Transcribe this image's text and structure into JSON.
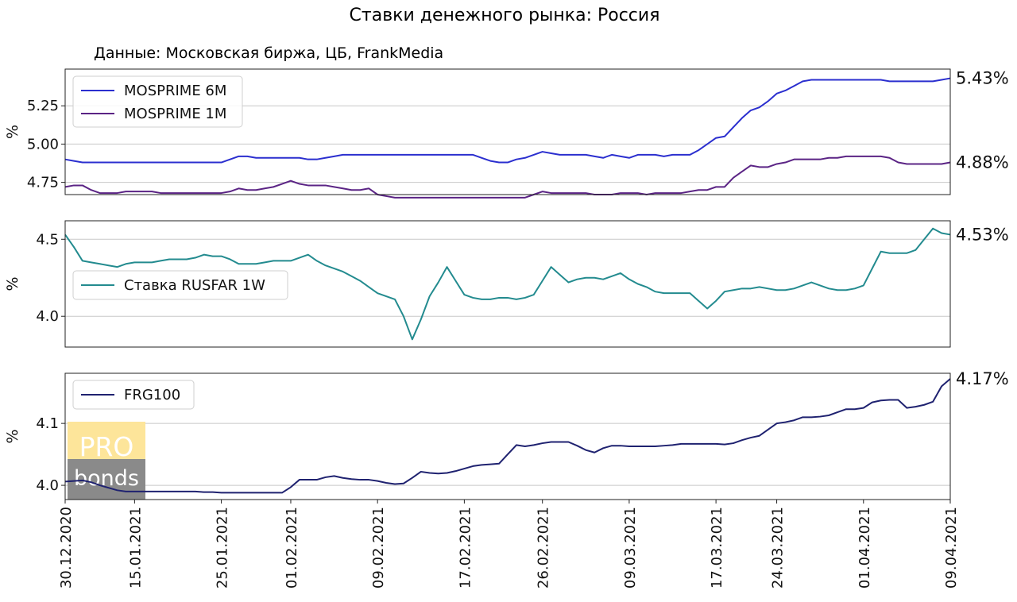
{
  "chart_data": {
    "type": "line",
    "title": "Ставки денежного рынка: Россия",
    "subtitle": "Данные: Московская биржа, ЦБ, FrankMedia",
    "x_tick_labels": [
      "30.12.2020",
      "15.01.2021",
      "25.01.2021",
      "01.02.2021",
      "09.02.2021",
      "17.02.2021",
      "26.02.2021",
      "09.03.2021",
      "17.03.2021",
      "24.03.2021",
      "01.04.2021",
      "09.04.2021"
    ],
    "x_tick_positions": [
      0,
      8,
      18,
      26,
      36,
      46,
      55,
      65,
      75,
      82,
      92,
      102
    ],
    "x_count": 103,
    "panels": [
      {
        "ylabel": "%",
        "ylim": [
          4.67,
          5.49
        ],
        "yticks": [
          4.75,
          5.0,
          5.25
        ],
        "ytick_labels": [
          "4.75",
          "5.00",
          "5.25"
        ],
        "grid": true,
        "legend_position": "top-left",
        "series": [
          {
            "name": "MOSPRIME 6M",
            "color": "#2b2fcf",
            "end_label": "5.43%",
            "values": [
              4.9,
              4.89,
              4.88,
              4.88,
              4.88,
              4.88,
              4.88,
              4.88,
              4.88,
              4.88,
              4.88,
              4.88,
              4.88,
              4.88,
              4.88,
              4.88,
              4.88,
              4.88,
              4.88,
              4.9,
              4.92,
              4.92,
              4.91,
              4.91,
              4.91,
              4.91,
              4.91,
              4.91,
              4.9,
              4.9,
              4.91,
              4.92,
              4.93,
              4.93,
              4.93,
              4.93,
              4.93,
              4.93,
              4.93,
              4.93,
              4.93,
              4.93,
              4.93,
              4.93,
              4.93,
              4.93,
              4.93,
              4.93,
              4.91,
              4.89,
              4.88,
              4.88,
              4.9,
              4.91,
              4.93,
              4.95,
              4.94,
              4.93,
              4.93,
              4.93,
              4.93,
              4.92,
              4.91,
              4.93,
              4.92,
              4.91,
              4.93,
              4.93,
              4.93,
              4.92,
              4.93,
              4.93,
              4.93,
              4.96,
              5.0,
              5.04,
              5.05,
              5.11,
              5.17,
              5.22,
              5.24,
              5.28,
              5.33,
              5.35,
              5.38,
              5.41,
              5.42,
              5.42,
              5.42,
              5.42,
              5.42,
              5.42,
              5.42,
              5.42,
              5.42,
              5.41,
              5.41,
              5.41,
              5.41,
              5.41,
              5.41,
              5.42,
              5.43
            ]
          },
          {
            "name": "MOSPRIME 1M",
            "color": "#5b2485",
            "end_label": "4.88%",
            "values": [
              4.72,
              4.73,
              4.73,
              4.7,
              4.68,
              4.68,
              4.68,
              4.69,
              4.69,
              4.69,
              4.69,
              4.68,
              4.68,
              4.68,
              4.68,
              4.68,
              4.68,
              4.68,
              4.68,
              4.69,
              4.71,
              4.7,
              4.7,
              4.71,
              4.72,
              4.74,
              4.76,
              4.74,
              4.73,
              4.73,
              4.73,
              4.72,
              4.71,
              4.7,
              4.7,
              4.71,
              4.67,
              4.66,
              4.65,
              4.65,
              4.65,
              4.65,
              4.65,
              4.65,
              4.65,
              4.65,
              4.65,
              4.65,
              4.65,
              4.65,
              4.65,
              4.65,
              4.65,
              4.65,
              4.67,
              4.69,
              4.68,
              4.68,
              4.68,
              4.68,
              4.68,
              4.67,
              4.67,
              4.67,
              4.68,
              4.68,
              4.68,
              4.67,
              4.68,
              4.68,
              4.68,
              4.68,
              4.69,
              4.7,
              4.7,
              4.72,
              4.72,
              4.78,
              4.82,
              4.86,
              4.85,
              4.85,
              4.87,
              4.88,
              4.9,
              4.9,
              4.9,
              4.9,
              4.91,
              4.91,
              4.92,
              4.92,
              4.92,
              4.92,
              4.92,
              4.91,
              4.88,
              4.87,
              4.87,
              4.87,
              4.87,
              4.87,
              4.88
            ]
          }
        ]
      },
      {
        "ylabel": "%",
        "ylim": [
          3.8,
          4.62
        ],
        "yticks": [
          4.0,
          4.5
        ],
        "ytick_labels": [
          "4.0",
          "4.5"
        ],
        "grid": true,
        "legend_position": "center-left",
        "series": [
          {
            "name": "Ставка RUSFAR 1W",
            "color": "#238b8f",
            "end_label": "4.53%",
            "values": [
              4.53,
              4.45,
              4.36,
              4.35,
              4.34,
              4.33,
              4.32,
              4.34,
              4.35,
              4.35,
              4.35,
              4.36,
              4.37,
              4.37,
              4.37,
              4.38,
              4.4,
              4.39,
              4.39,
              4.37,
              4.34,
              4.34,
              4.34,
              4.35,
              4.36,
              4.36,
              4.36,
              4.38,
              4.4,
              4.36,
              4.33,
              4.31,
              4.29,
              4.26,
              4.23,
              4.19,
              4.15,
              4.13,
              4.11,
              4.0,
              3.85,
              3.98,
              4.13,
              4.22,
              4.32,
              4.23,
              4.14,
              4.12,
              4.11,
              4.11,
              4.12,
              4.12,
              4.11,
              4.12,
              4.14,
              4.23,
              4.32,
              4.27,
              4.22,
              4.24,
              4.25,
              4.25,
              4.24,
              4.26,
              4.28,
              4.24,
              4.21,
              4.19,
              4.16,
              4.15,
              4.15,
              4.15,
              4.15,
              4.1,
              4.05,
              4.1,
              4.16,
              4.17,
              4.18,
              4.18,
              4.19,
              4.18,
              4.17,
              4.17,
              4.18,
              4.2,
              4.22,
              4.2,
              4.18,
              4.17,
              4.17,
              4.18,
              4.2,
              4.31,
              4.42,
              4.41,
              4.41,
              4.41,
              4.43,
              4.5,
              4.57,
              4.54,
              4.53
            ]
          }
        ]
      },
      {
        "ylabel": "%",
        "ylim": [
          3.977,
          4.181
        ],
        "yticks": [
          4.0,
          4.1
        ],
        "ytick_labels": [
          "4.0",
          "4.1"
        ],
        "grid": true,
        "legend_position": "top-left",
        "series": [
          {
            "name": "FRG100",
            "color": "#1f2270",
            "end_label": "4.17%",
            "values": [
              4.006,
              4.007,
              4.008,
              4.005,
              4.0,
              3.996,
              3.992,
              3.99,
              3.99,
              3.99,
              3.99,
              3.99,
              3.99,
              3.99,
              3.99,
              3.99,
              3.989,
              3.989,
              3.988,
              3.988,
              3.988,
              3.988,
              3.988,
              3.988,
              3.988,
              3.988,
              3.997,
              4.009,
              4.009,
              4.009,
              4.013,
              4.015,
              4.012,
              4.01,
              4.009,
              4.009,
              4.007,
              4.004,
              4.002,
              4.003,
              4.012,
              4.022,
              4.02,
              4.019,
              4.02,
              4.023,
              4.027,
              4.031,
              4.033,
              4.034,
              4.035,
              4.05,
              4.065,
              4.063,
              4.065,
              4.068,
              4.07,
              4.07,
              4.07,
              4.064,
              4.057,
              4.053,
              4.06,
              4.064,
              4.064,
              4.063,
              4.063,
              4.063,
              4.063,
              4.064,
              4.065,
              4.067,
              4.067,
              4.067,
              4.067,
              4.067,
              4.066,
              4.068,
              4.073,
              4.077,
              4.08,
              4.09,
              4.1,
              4.102,
              4.105,
              4.11,
              4.11,
              4.111,
              4.113,
              4.118,
              4.123,
              4.123,
              4.125,
              4.134,
              4.137,
              4.138,
              4.138,
              4.125,
              4.127,
              4.13,
              4.135,
              4.16,
              4.172
            ]
          }
        ]
      }
    ]
  },
  "watermark": {
    "top": "PRO",
    "bottom": "bonds",
    "top_color": "#fde59a",
    "bottom_color": "#8a8a8a"
  }
}
